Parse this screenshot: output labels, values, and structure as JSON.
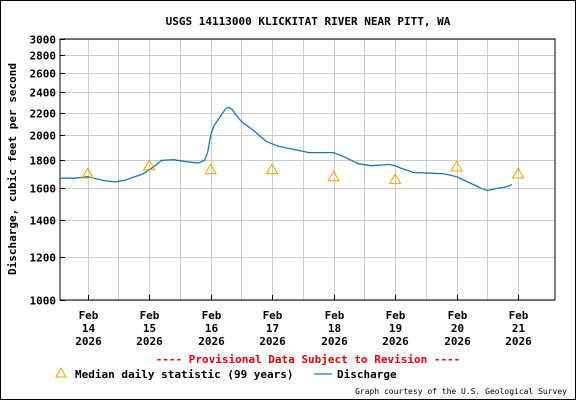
{
  "chart_data": {
    "type": "line",
    "title": "USGS 14113000 KLICKITAT RIVER NEAR PITT, WA",
    "ylabel": "Discharge, cubic feet per second",
    "xlabel": "",
    "y_scale": "log",
    "ylim": [
      1000,
      3000
    ],
    "yticks": [
      1000,
      1200,
      1400,
      1600,
      1800,
      2000,
      2200,
      2400,
      2600,
      2800,
      3000
    ],
    "yticklabels": [
      "1000",
      "1200",
      "1400",
      "1600",
      "1800",
      "2000",
      "2200",
      "2400",
      "2600",
      "2800",
      "3000"
    ],
    "xlim": [
      -0.45,
      7.6
    ],
    "xticks": [
      {
        "x": 0,
        "lines": [
          "Feb",
          "14",
          "2026"
        ]
      },
      {
        "x": 1,
        "lines": [
          "Feb",
          "15",
          "2026"
        ]
      },
      {
        "x": 2,
        "lines": [
          "Feb",
          "16",
          "2026"
        ]
      },
      {
        "x": 3,
        "lines": [
          "Feb",
          "17",
          "2026"
        ]
      },
      {
        "x": 4,
        "lines": [
          "Feb",
          "18",
          "2026"
        ]
      },
      {
        "x": 5,
        "lines": [
          "Feb",
          "19",
          "2026"
        ]
      },
      {
        "x": 6,
        "lines": [
          "Feb",
          "20",
          "2026"
        ]
      },
      {
        "x": 7,
        "lines": [
          "Feb",
          "21",
          "2026"
        ]
      }
    ],
    "grid": true,
    "series": [
      {
        "name": "Discharge",
        "color": "#1f77b4",
        "x": [
          -0.45,
          -0.2,
          0,
          0.1,
          0.3,
          0.45,
          0.6,
          0.9,
          1.1,
          1.2,
          1.4,
          1.6,
          1.8,
          1.9,
          1.95,
          2.0,
          2.05,
          2.15,
          2.25,
          2.3,
          2.35,
          2.4,
          2.5,
          2.7,
          2.9,
          3.1,
          3.4,
          3.6,
          3.8,
          4.0,
          4.2,
          4.4,
          4.6,
          4.8,
          4.9,
          5.0,
          5.1,
          5.3,
          5.6,
          5.8,
          5.9,
          6.0,
          6.1,
          6.2,
          6.3,
          6.4,
          6.5,
          6.6,
          6.8,
          6.9
        ],
        "y": [
          1670,
          1670,
          1680,
          1670,
          1650,
          1645,
          1655,
          1700,
          1760,
          1800,
          1805,
          1790,
          1780,
          1800,
          1860,
          2000,
          2080,
          2160,
          2240,
          2250,
          2230,
          2190,
          2120,
          2040,
          1950,
          1910,
          1880,
          1860,
          1860,
          1860,
          1820,
          1775,
          1760,
          1765,
          1770,
          1760,
          1740,
          1710,
          1705,
          1700,
          1690,
          1680,
          1660,
          1640,
          1620,
          1600,
          1585,
          1595,
          1610,
          1625
        ]
      },
      {
        "name": "Median daily statistic (99 years)",
        "color": "#f0a000",
        "marker": "triangle",
        "x": [
          0,
          1,
          2,
          3,
          4,
          5,
          6,
          7
        ],
        "y": [
          1700,
          1760,
          1730,
          1730,
          1680,
          1660,
          1750,
          1700
        ]
      }
    ]
  },
  "provisional_note": "---- Provisional Data Subject to Revision ----",
  "legend": {
    "median_label": "Median daily statistic (99 years)",
    "discharge_label": "Discharge"
  },
  "credit": "Graph courtesy of the U.S. Geological Survey",
  "colors": {
    "discharge_line": "#1f77b4",
    "median_marker": "#f0a000",
    "provisional_text": "#e8000b",
    "grid": "#cccccc"
  }
}
